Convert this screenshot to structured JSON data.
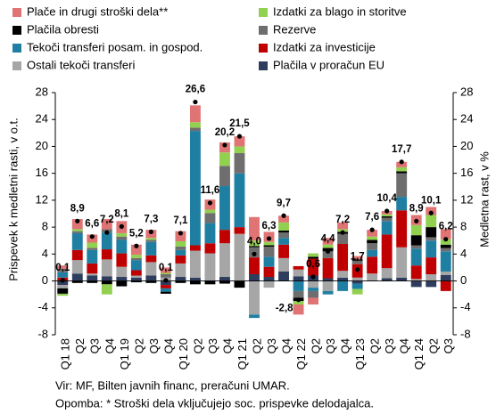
{
  "chart_data": {
    "type": "stacked_bar",
    "y_label": "Prispevek k medletni rasti, v o.t.",
    "y2_label": "Medletna rast, v %",
    "categories": [
      "Q1 18",
      "Q2",
      "Q3",
      "Q4",
      "Q1 19",
      "Q2",
      "Q3",
      "Q4",
      "Q1 20",
      "Q2",
      "Q3",
      "Q4",
      "Q1 21",
      "Q2",
      "Q3",
      "Q4",
      "Q1 22",
      "Q2",
      "Q3",
      "Q4",
      "Q1 23",
      "Q2",
      "Q3",
      "Q4",
      "Q1 24",
      "Q2",
      "Q3"
    ],
    "series": [
      {
        "name": "Plače in drugi stroški dela**",
        "color": "#e07474",
        "values": [
          0.5,
          1.5,
          1.2,
          1.5,
          1.8,
          1.5,
          1.2,
          0.8,
          1.5,
          2.5,
          1.5,
          1.5,
          1.5,
          3.5,
          1.5,
          1.0,
          -1.5,
          -1.0,
          1.0,
          1.0,
          0.5,
          1.0,
          0.5,
          0.8,
          1.5,
          1.2,
          1.5
        ]
      },
      {
        "name": "Izdatki za blago in storitve",
        "color": "#92d050",
        "values": [
          -0.3,
          0.3,
          0.8,
          -1.5,
          0.5,
          0.5,
          0.3,
          0.2,
          0.8,
          0.8,
          0.5,
          2.0,
          1.0,
          0.8,
          0.5,
          1.2,
          -0.5,
          0.5,
          0.5,
          0.4,
          -0.8,
          0.5,
          0.3,
          0.6,
          1.5,
          1.8,
          0.8
        ]
      },
      {
        "name": "Plačila obresti",
        "color": "#000000",
        "values": [
          -0.8,
          -0.3,
          -0.3,
          -0.5,
          -0.8,
          -0.2,
          -0.3,
          -0.3,
          -0.3,
          -0.5,
          -0.5,
          -0.4,
          -1.0,
          0.2,
          0.2,
          0.3,
          -0.5,
          0.3,
          0.5,
          0.3,
          0.2,
          0.5,
          0.2,
          0.3,
          1.5,
          1.5,
          0.5
        ]
      },
      {
        "name": "Rezerve",
        "color": "#6e6e6e",
        "values": [
          0.5,
          0.3,
          0.3,
          0.5,
          0.5,
          0.3,
          0.3,
          0.5,
          0.5,
          0.5,
          1.5,
          3.0,
          3.0,
          1.5,
          1.5,
          0.8,
          -1.0,
          -1.0,
          1.0,
          1.5,
          0.5,
          1.0,
          0.5,
          3.5,
          0.5,
          0.5,
          0.5
        ]
      },
      {
        "name": "Tekoči transferi posam. in gospod.",
        "color": "#1f7fa3",
        "values": [
          0.8,
          2.5,
          2.0,
          2.5,
          2.0,
          1.5,
          2.0,
          -0.5,
          0.8,
          17.0,
          3.0,
          6.5,
          8.0,
          -0.5,
          1.5,
          1.0,
          -1.5,
          -0.5,
          -0.5,
          -1.5,
          -0.8,
          1.0,
          2.0,
          2.0,
          2.5,
          2.5,
          3.0
        ]
      },
      {
        "name": "Izdatki za investicije",
        "color": "#c00000",
        "values": [
          0.5,
          1.5,
          1.5,
          1.5,
          2.0,
          0.8,
          1.0,
          -0.5,
          1.2,
          0.8,
          1.5,
          2.0,
          1.0,
          2.5,
          1.5,
          2.0,
          0.5,
          2.5,
          3.0,
          4.0,
          2.0,
          2.5,
          5.0,
          5.5,
          2.0,
          2.5,
          -1.5
        ]
      },
      {
        "name": "Ostali tekoči transferi",
        "color": "#a6a6a6",
        "values": [
          -0.5,
          2.0,
          0.3,
          2.5,
          1.5,
          0.3,
          2.0,
          0.5,
          2.0,
          4.0,
          4.0,
          5.0,
          7.0,
          -5.0,
          -1.0,
          2.0,
          1.0,
          -1.0,
          -1.5,
          1.0,
          0.5,
          1.0,
          1.5,
          4.5,
          0.3,
          1.0,
          0.5
        ]
      },
      {
        "name": "Plačila v proračun EU",
        "color": "#2e3d5e",
        "values": [
          -0.6,
          1.1,
          0.8,
          0.7,
          0.6,
          0.5,
          0.8,
          -0.6,
          0.6,
          0.5,
          0.1,
          0.6,
          0.0,
          1.0,
          0.6,
          1.4,
          0.7,
          0.8,
          0.4,
          0.5,
          -0.4,
          0.1,
          0.4,
          0.5,
          -0.9,
          -0.9,
          0.9
        ]
      }
    ],
    "total": {
      "color": "#000000",
      "values": [
        0.1,
        8.9,
        6.6,
        7.2,
        8.1,
        5.2,
        7.3,
        0.1,
        7.1,
        26.6,
        11.6,
        20.2,
        21.5,
        4.0,
        6.3,
        9.7,
        -2.8,
        0.6,
        4.4,
        7.2,
        1.7,
        7.6,
        10.4,
        17.7,
        8.9,
        10.1,
        6.2
      ],
      "value_labels": [
        "0,1",
        "8,9",
        "6,6",
        "7,2",
        "8,1",
        "5,2",
        "7,3",
        "0,1",
        "7,1",
        "26,6",
        "11,6",
        "20,2",
        "21,5",
        "4,0",
        "6,3",
        "9,7",
        "-2,8",
        "0,6",
        "4,4",
        "7,2",
        "1,7",
        "7,6",
        "10,4",
        "17,7",
        "8,9",
        "10,1",
        "6,2"
      ]
    },
    "ylim": [
      -8,
      28
    ],
    "yticks": [
      -8,
      -4,
      0,
      4,
      8,
      12,
      16,
      20,
      24,
      28
    ],
    "y2lim": [
      -8,
      28
    ],
    "y2ticks": [
      -8,
      -4,
      0,
      4,
      8,
      12,
      16,
      20,
      24,
      28
    ],
    "grid": false,
    "notes": [
      "Vir: MF, Bilten javnih financ, preračuni UMAR.",
      "Opomba: * Stroški dela vključujejo soc. prispevke delodajalca."
    ]
  }
}
